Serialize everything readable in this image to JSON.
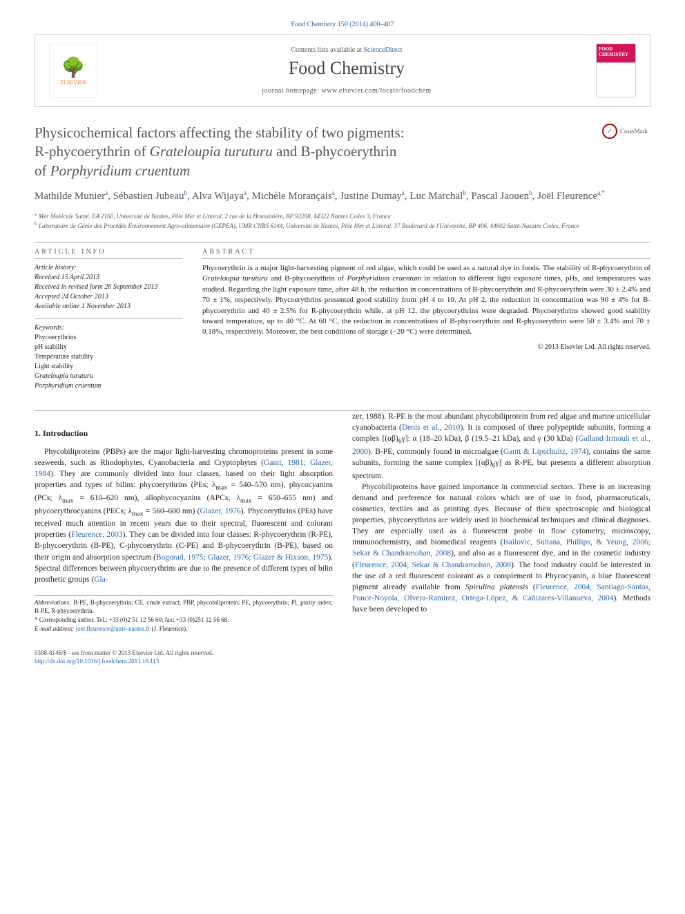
{
  "citation": "Food Chemistry 150 (2014) 400–407",
  "header": {
    "contents_prefix": "Contents lists available at ",
    "contents_link": "ScienceDirect",
    "journal": "Food Chemistry",
    "homepage_prefix": "journal homepage: ",
    "homepage_url": "www.elsevier.com/locate/foodchem",
    "publisher": "ELSEVIER",
    "cover_title": "FOOD CHEMISTRY"
  },
  "crossmark": "CrossMark",
  "title": {
    "line1": "Physicochemical factors affecting the stability of two pigments:",
    "line2_pre": "R-phycoerythrin of ",
    "line2_em": "Grateloupia turuturu",
    "line2_post": " and B-phycoerythrin",
    "line3_pre": "of ",
    "line3_em": "Porphyridium cruentum"
  },
  "authors_html": "Mathilde Munier<sup>a</sup>, Sébastien Jubeau<sup>b</sup>, Alva Wijaya<sup>a</sup>, Michèle Morançais<sup>a</sup>, Justine Dumay<sup>a</sup>, Luc Marchal<sup>b</sup>, Pascal Jaouen<sup>b</sup>, Joël Fleurence<sup>a,*</sup>",
  "affiliations": {
    "a": "Mer Molécule Santé, EA 2160, Université de Nantes, Pôle Mer et Littoral, 2 rue de la Houssinière, BP 92208, 44322 Nantes Cedex 3, France",
    "b": "Laboratoire de Génie des Procédés Environnement Agro-alimentaire (GEPEA), UMR CNRS 6144, Université de Nantes, Pôle Mer et Littoral, 37 Boulevard de l'Université, BP 406, 44602 Saint-Nazaire Cedex, France"
  },
  "info": {
    "label": "ARTICLE INFO",
    "history_label": "Article history:",
    "received": "Received 15 April 2013",
    "revised": "Received in revised form 26 September 2013",
    "accepted": "Accepted 24 October 2013",
    "online": "Available online 1 November 2013",
    "keywords_label": "Keywords:",
    "keywords": [
      "Phycoerythrins",
      "pH stability",
      "Temperature stability",
      "Light stability"
    ],
    "keywords_em": [
      "Grateloupia turuturu",
      "Porphyridium cruentum"
    ]
  },
  "abstract": {
    "label": "ABSTRACT",
    "text_parts": [
      "Phycoerythrin is a major light-harvesting pigment of red algae, which could be used as a natural dye in foods. The stability of R-phycoerythrin of ",
      "Grateloupia turuturu",
      " and B-phycoerythrin of ",
      "Porphyridium cruentum",
      " in relation to different light exposure times, pHs, and temperatures was studied. Regarding the light exposure time, after 48 h, the reduction in concentrations of B-phycoerythrin and R-phycoerythrin were 30 ± 2.4% and 70 ± 1%, respectively. Phycoerythrins presented good stability from pH 4 to 10. At pH 2, the reduction in concentration was 90 ± 4% for B-phycoerythrin and 40 ± 2.5% for R-phycoerythrin while, at pH 12, the phycoerythrins were degraded. Phycoerythrins showed good stability toward temperature, up to 40 °C. At 60 °C, the reduction in concentrations of B-phycoerythrin and R-phycoerythrin were 50 ± 3.4% and 70 ± 0.18%, respectively. Moreover, the best conditions of storage (−20 °C) were determined."
    ],
    "copyright": "© 2013 Elsevier Ltd. All rights reserved."
  },
  "body": {
    "section_heading": "1. Introduction",
    "paragraphs": [
      "Phycobiliproteins (PBPs) are the major light-harvesting chromoproteins present in some seaweeds, such as Rhodophytes, Cyanobacteria and Cryptophytes (<a href='#'>Gantt, 1981; Glazer, 1984</a>). They are commonly divided into four classes, based on their light absorption properties and types of bilins: phycoerythrins (PEs; λ<sub>max</sub> = 540–570 nm), phycocyanins (PCs; λ<sub>max</sub> = 610–620 nm), allophycocyanins (APCs; λ<sub>max</sub> = 650–655 nm) and phycoerythrocyanins (PECs; λ<sub>max</sub> = 560–600 nm) (<a href='#'>Glazer, 1976</a>). Phycoerythrins (PEs) have received much attention in recent years due to their spectral, fluorescent and colorant properties (<a href='#'>Fleurence, 2003</a>). They can be divided into four classes: R-phycoerythrin (R-PE), B-phycoerythrin (B-PE), C-phycoerythrin (C-PE) and B-phycoerythrin (B-PE), based on their origin and absorption spectrum (<a href='#'>Bogorad, 1975; Glazer, 1976; Glazer & Hixson, 1975</a>). Spectral differences between phycoerythrins are due to the presence of different types of bilin prosthetic groups (<a href='#'>Gla-",
      "zer, 1988</a>). R-PE is the most abundant phycobiliprotein from red algae and marine unicellular cyanobacteria (<a href='#'>Denis et al., 2010</a>). It is composed of three polypeptide subunits, forming a complex [(αβ)<sub>6</sub>γ]: α (18–20 kDa), β (19.5–21 kDa), and γ (30 kDa) (<a href='#'>Galland-Irmouli et al., 2000</a>). B-PE, commonly found in microalgae (<a href='#'>Gantt & Lipschultz, 1974</a>), contains the same subunits, forming the same complex [(αβ)<sub>6</sub>γ] as R-PE, but presents a different absorption spectrum.",
      "Phycobiliproteins have gained importance in commercial sectors. There is an increasing demand and preference for natural colors which are of use in food, pharmaceuticals, cosmetics, textiles and as printing dyes. Because of their spectroscopic and biological properties, phycoerythrins are widely used in biochemical techniques and clinical diagnoses. They are especially used as a fluorescent probe in flow cytometry, microscopy, immunochemistry, and biomedical reagents (<a href='#'>Isailovic, Sultana, Phillips, & Yeung, 2006; Sekar & Chandramohan, 2008</a>), and also as a fluorescent dye, and in the cosmetic industry (<a href='#'>Fleurence, 2004; Sekar & Chandramohan, 2008</a>). The food industry could be interested in the use of a red fluorescent colorant as a complement to Phycocyanin, a blue fluorescent pigment already available from <em>Spirulina platensis</em> (<a href='#'>Fleurence, 2004; Santiago-Santos, Ponce-Noyola, Olvera-Ramírez, Ortega-López, & Cañizares-Villanueva, 2004</a>). Methods have been developed to"
    ]
  },
  "footnotes": {
    "abbrev_label": "Abbreviations:",
    "abbrev_text": " B-PE, B-phycoerythrin; CE, crude extract; PBP, phycobiliprotein; PE, phycoerythrin; PI, purity index; R-PE, R-phycoerythrin.",
    "corr_label": "* Corresponding author.",
    "corr_text": " Tel.: +33 (0)2 51 12 56 60; fax: +33 (0)251 12 56 68.",
    "email_label": "E-mail address:",
    "email": "joel.fleurence@univ-nantes.fr",
    "email_who": " (J. Fleurence)."
  },
  "footer": {
    "line1": "0308-8146/$ - see front matter © 2013 Elsevier Ltd. All rights reserved.",
    "doi": "http://dx.doi.org/10.1016/j.foodchem.2013.10.113"
  },
  "colors": {
    "link": "#2266aa",
    "publisher": "#f47c2c",
    "cover_accent": "#d4145a",
    "text_body": "#222222",
    "text_muted": "#555555"
  }
}
